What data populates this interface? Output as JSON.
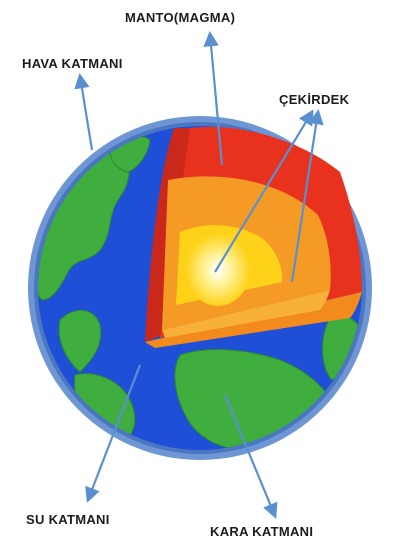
{
  "labels": {
    "manto": "MANTO(MAGMA)",
    "hava": "HAVA KATMANI",
    "cekirdek": "ÇEKİRDEK",
    "su": "SU KATMANI",
    "kara": "KARA KATMANI"
  },
  "colors": {
    "atmosphere": "#5b86c9",
    "ocean": "#1f4fd6",
    "land": "#3fae3f",
    "mantle_outer": "#e8321e",
    "mantle_side": "#c9281a",
    "outer_core": "#f28a1e",
    "inner_core": "#ffd21a",
    "core_center": "#fff6a8",
    "arrow": "#5a8fd0"
  }
}
